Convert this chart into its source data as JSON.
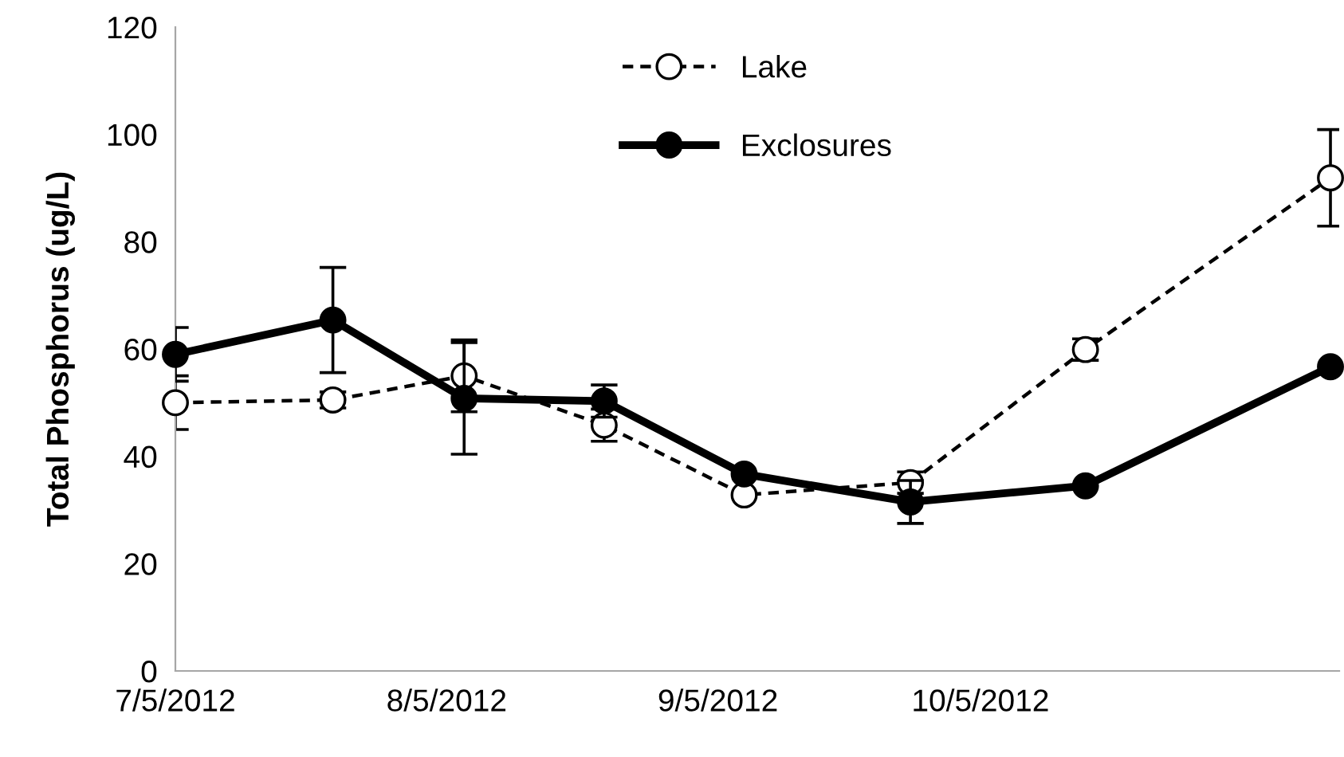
{
  "chart_data": {
    "type": "line",
    "ylabel": "Total Phosphorus (ug/L)",
    "xlim": [
      "2012-07-05",
      "2012-11-15"
    ],
    "ylim": [
      0,
      120
    ],
    "yticks": [
      0,
      20,
      40,
      60,
      80,
      100,
      120
    ],
    "xticks": [
      {
        "value": "2012-07-05",
        "label": "7/5/2012"
      },
      {
        "value": "2012-08-05",
        "label": "8/5/2012"
      },
      {
        "value": "2012-09-05",
        "label": "9/5/2012"
      },
      {
        "value": "2012-10-05",
        "label": "10/5/2012"
      }
    ],
    "x": [
      "2012-07-05",
      "2012-07-23",
      "2012-08-07",
      "2012-08-23",
      "2012-09-08",
      "2012-09-27",
      "2012-10-17",
      "2012-11-14"
    ],
    "grid": false,
    "legend": "top",
    "series": [
      {
        "name": "Lake",
        "color": "#000000",
        "line_style": "dashed",
        "marker": "circle",
        "values": [
          50.0,
          50.5,
          55,
          45.8,
          32.8,
          35.1,
          59.9,
          91.9
        ],
        "errors": [
          5,
          1.5,
          6.7,
          3,
          null,
          2,
          2,
          9
        ]
      },
      {
        "name": "Exclosures",
        "color": "#000000",
        "line_style": "solid",
        "marker": "circle",
        "values": [
          59,
          65.4,
          50.8,
          50.3,
          36.7,
          31.5,
          34.5,
          56.7
        ],
        "errors": [
          5,
          9.8,
          10.4,
          3,
          null,
          4,
          null,
          null
        ]
      }
    ]
  }
}
